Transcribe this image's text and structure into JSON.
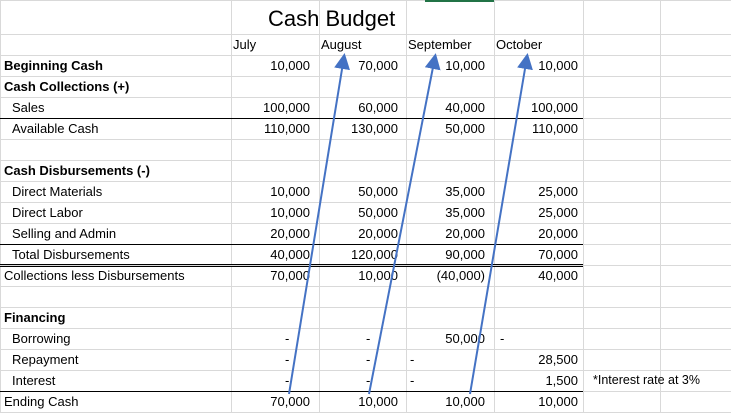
{
  "sheet": {
    "title": "Cash Budget",
    "months": [
      "July",
      "August",
      "September",
      "October"
    ],
    "rows": {
      "beginning_cash": {
        "label": "Beginning Cash",
        "values": [
          "10,000",
          "70,000",
          "10,000",
          "10,000"
        ]
      },
      "cash_collections": {
        "label": "Cash Collections (+)"
      },
      "sales": {
        "label": "Sales",
        "values": [
          "100,000",
          "60,000",
          "40,000",
          "100,000"
        ]
      },
      "available_cash": {
        "label": "Available Cash",
        "values": [
          "110,000",
          "130,000",
          "50,000",
          "110,000"
        ]
      },
      "cash_disbursements": {
        "label": "Cash Disbursements (-)"
      },
      "direct_materials": {
        "label": "Direct Materials",
        "values": [
          "10,000",
          "50,000",
          "35,000",
          "25,000"
        ]
      },
      "direct_labor": {
        "label": "Direct Labor",
        "values": [
          "10,000",
          "50,000",
          "35,000",
          "25,000"
        ]
      },
      "selling_admin": {
        "label": "Selling and Admin",
        "values": [
          "20,000",
          "20,000",
          "20,000",
          "20,000"
        ]
      },
      "total_disbursements": {
        "label": "Total Disbursements",
        "values": [
          "40,000",
          "120,000",
          "90,000",
          "70,000"
        ]
      },
      "collections_less": {
        "label": "Collections less Disbursements",
        "values": [
          "70,000",
          "10,000",
          "(40,000)",
          "40,000"
        ]
      },
      "financing": {
        "label": "Financing"
      },
      "borrowing": {
        "label": "Borrowing",
        "values": [
          "-",
          "-",
          "50,000",
          "-"
        ]
      },
      "repayment": {
        "label": "Repayment",
        "values": [
          "-",
          "-",
          "-",
          "28,500"
        ]
      },
      "interest": {
        "label": "Interest",
        "values": [
          "-",
          "-",
          "-",
          "1,500"
        ]
      },
      "ending_cash": {
        "label": "Ending Cash",
        "values": [
          "70,000",
          "10,000",
          "10,000",
          "10,000"
        ]
      }
    },
    "note": "*Interest rate at 3%",
    "colors": {
      "gridline": "#d9d9d9",
      "arrow": "#4472c4",
      "border": "#000000",
      "selection": "#217346"
    }
  }
}
